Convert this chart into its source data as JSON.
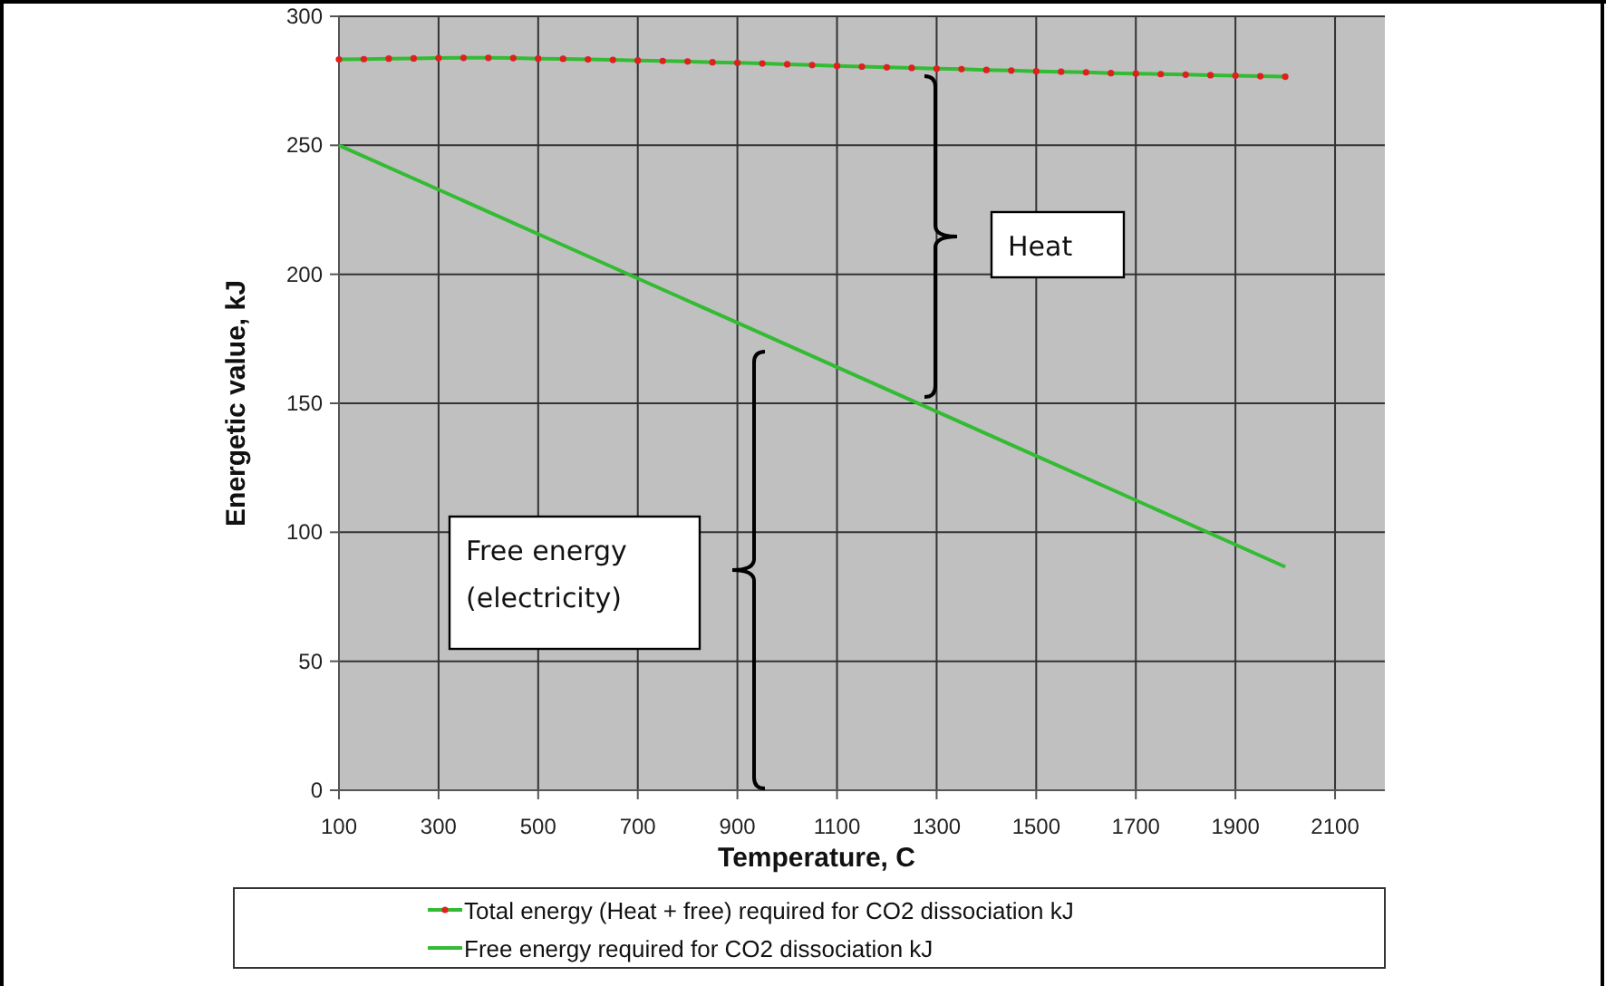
{
  "chart_data": {
    "type": "line",
    "xlabel": "Temperature, C",
    "ylabel": "Energetic value, kJ",
    "xlim": [
      100,
      2200
    ],
    "xticks": [
      100,
      300,
      500,
      700,
      900,
      1100,
      1300,
      1500,
      1700,
      1900,
      2100
    ],
    "ylim": [
      0,
      300
    ],
    "yticks": [
      0,
      50,
      100,
      150,
      200,
      250,
      300
    ],
    "grid": true,
    "legend": "bottom",
    "series": [
      {
        "name": "Total energy (Heat + free) required for CO2 dissociation kJ",
        "color": "#33bb33",
        "marker": "circle",
        "x": [
          100,
          150,
          200,
          250,
          300,
          350,
          400,
          450,
          500,
          550,
          600,
          650,
          700,
          750,
          800,
          850,
          900,
          950,
          1000,
          1050,
          1100,
          1150,
          1200,
          1250,
          1300,
          1350,
          1400,
          1450,
          1500,
          1550,
          1600,
          1650,
          1700,
          1750,
          1800,
          1850,
          1900,
          1950,
          2000
        ],
        "values": [
          283.3,
          283.4,
          283.6,
          283.7,
          283.8,
          283.9,
          283.9,
          283.8,
          283.6,
          283.5,
          283.3,
          283.1,
          282.9,
          282.7,
          282.5,
          282.2,
          282,
          281.7,
          281.4,
          281.1,
          280.8,
          280.5,
          280.2,
          280,
          279.7,
          279.5,
          279.2,
          279,
          278.7,
          278.5,
          278.3,
          278,
          277.8,
          277.6,
          277.4,
          277.2,
          277,
          276.8,
          276.6
        ]
      },
      {
        "name": "Free energy required for CO2 dissociation kJ",
        "color": "#33bb33",
        "marker": "none",
        "x": [
          100,
          300,
          500,
          700,
          900,
          1100,
          1300,
          1500,
          1700,
          1900,
          2000
        ],
        "values": [
          250,
          232.8,
          215.6,
          198.4,
          181.2,
          164,
          146.8,
          129.6,
          112.4,
          95.2,
          86.6
        ]
      }
    ],
    "annotations": [
      "Heat",
      "Free energy\n(electricity)"
    ]
  }
}
